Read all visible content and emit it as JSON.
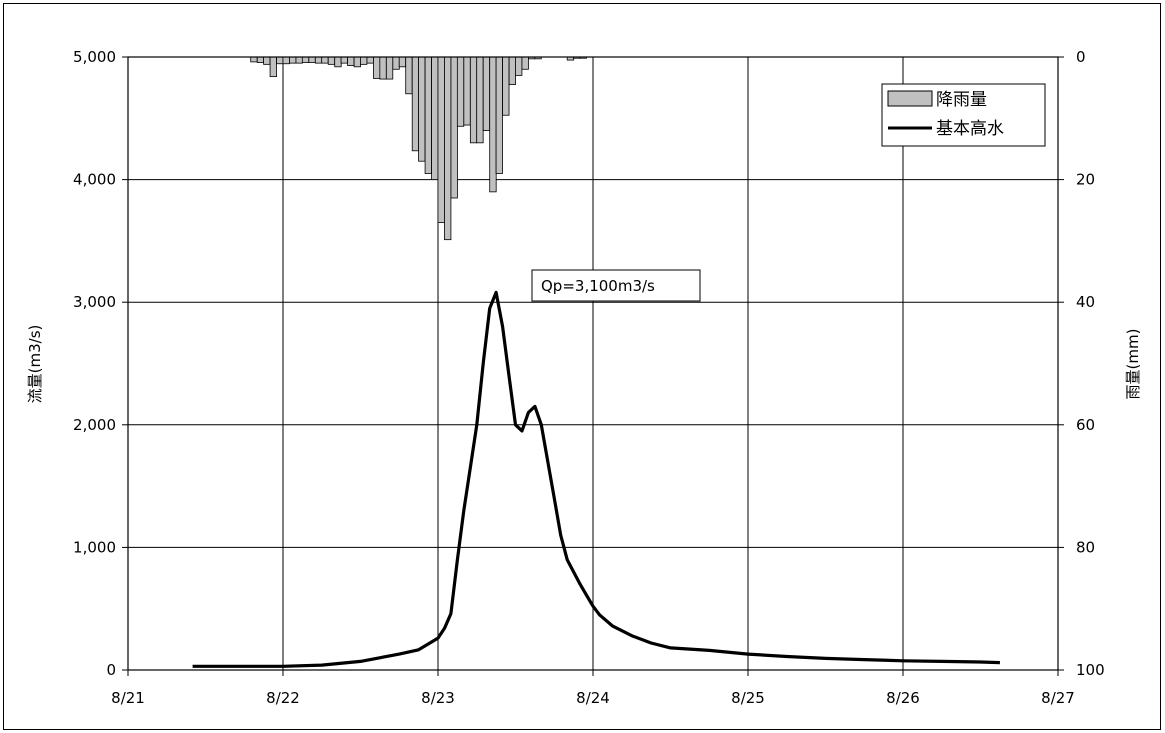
{
  "chart_data": {
    "type": "bar+line",
    "title": "",
    "ylabel_left": "流量(m3/s)",
    "ylabel_right": "雨量(mm)",
    "x_ticks": [
      "8/21",
      "8/22",
      "8/23",
      "8/24",
      "8/25",
      "8/26",
      "8/27"
    ],
    "y_left_ticks": [
      "0",
      "1,000",
      "2,000",
      "3,000",
      "4,000",
      "5,000"
    ],
    "y_right_ticks": [
      "0",
      "20",
      "40",
      "60",
      "80",
      "100"
    ],
    "y_left_range": [
      0,
      5000
    ],
    "y_right_range": [
      0,
      100
    ],
    "y_right_inverted": true,
    "grid": true,
    "legend_position": "top-right",
    "series": [
      {
        "name": "降雨量",
        "kind": "bar",
        "color": "#c0c0c0",
        "x_day_offsets": [
          0.0,
          0.042,
          0.083,
          0.125,
          0.167,
          0.208,
          0.25,
          0.292,
          0.333,
          0.375,
          0.417,
          0.458,
          0.5,
          0.542,
          0.583,
          0.625,
          0.667,
          0.708,
          0.75,
          0.792,
          0.833,
          0.875,
          0.917,
          0.958,
          1.0,
          1.042,
          1.083,
          1.125,
          1.167,
          1.208,
          1.25,
          1.292,
          1.333,
          1.375,
          1.417,
          1.458,
          1.5,
          1.542,
          1.583,
          1.625,
          1.667,
          1.708,
          1.75,
          1.792,
          1.833,
          2.042,
          2.083,
          2.125
        ],
        "x_start": "8/21 19:00",
        "values": [
          0.8,
          0.9,
          1.2,
          3.2,
          1.1,
          1.1,
          1.0,
          1.0,
          0.9,
          0.9,
          1.0,
          1.0,
          1.2,
          1.6,
          1.0,
          1.4,
          1.6,
          1.2,
          1.0,
          3.5,
          3.6,
          3.6,
          2.0,
          1.6,
          6.0,
          15.3,
          17.0,
          19.0,
          20.0,
          27.0,
          29.8,
          23.0,
          11.3,
          11.1,
          14.0,
          14.0,
          12.0,
          22.0,
          19.0,
          9.5,
          4.5,
          3.0,
          2.0,
          0.3,
          0.3,
          0.5,
          0.2,
          0.2
        ]
      },
      {
        "name": "基本高水",
        "kind": "line",
        "color": "#000000",
        "x": [
          "8/21 10:00",
          "8/22 00:00",
          "8/22 06:00",
          "8/22 12:00",
          "8/22 18:00",
          "8/22 21:00",
          "8/23 00:00",
          "8/23 01:00",
          "8/23 02:00",
          "8/23 03:00",
          "8/23 04:00",
          "8/23 05:00",
          "8/23 06:00",
          "8/23 07:00",
          "8/23 08:00",
          "8/23 09:00",
          "8/23 10:00",
          "8/23 11:00",
          "8/23 12:00",
          "8/23 13:00",
          "8/23 14:00",
          "8/23 15:00",
          "8/23 16:00",
          "8/23 17:00",
          "8/23 18:00",
          "8/23 19:00",
          "8/23 20:00",
          "8/23 21:00",
          "8/23 22:00",
          "8/23 23:00",
          "8/24 00:00",
          "8/24 01:00",
          "8/24 03:00",
          "8/24 06:00",
          "8/24 09:00",
          "8/24 12:00",
          "8/24 18:00",
          "8/25 00:00",
          "8/25 06:00",
          "8/25 12:00",
          "8/25 18:00",
          "8/26 00:00",
          "8/26 06:00",
          "8/26 12:00",
          "8/26 15:00"
        ],
        "values": [
          30,
          30,
          40,
          70,
          130,
          165,
          260,
          340,
          460,
          900,
          1300,
          1650,
          2000,
          2500,
          2950,
          3080,
          2800,
          2400,
          2000,
          1950,
          2100,
          2150,
          2000,
          1700,
          1400,
          1100,
          900,
          800,
          700,
          610,
          520,
          450,
          360,
          280,
          220,
          180,
          160,
          130,
          110,
          95,
          85,
          75,
          70,
          65,
          60
        ]
      }
    ],
    "annotations": [
      {
        "text": "Qp=3,100m3/s",
        "x": "8/23 09:00",
        "y": 3100
      }
    ]
  }
}
